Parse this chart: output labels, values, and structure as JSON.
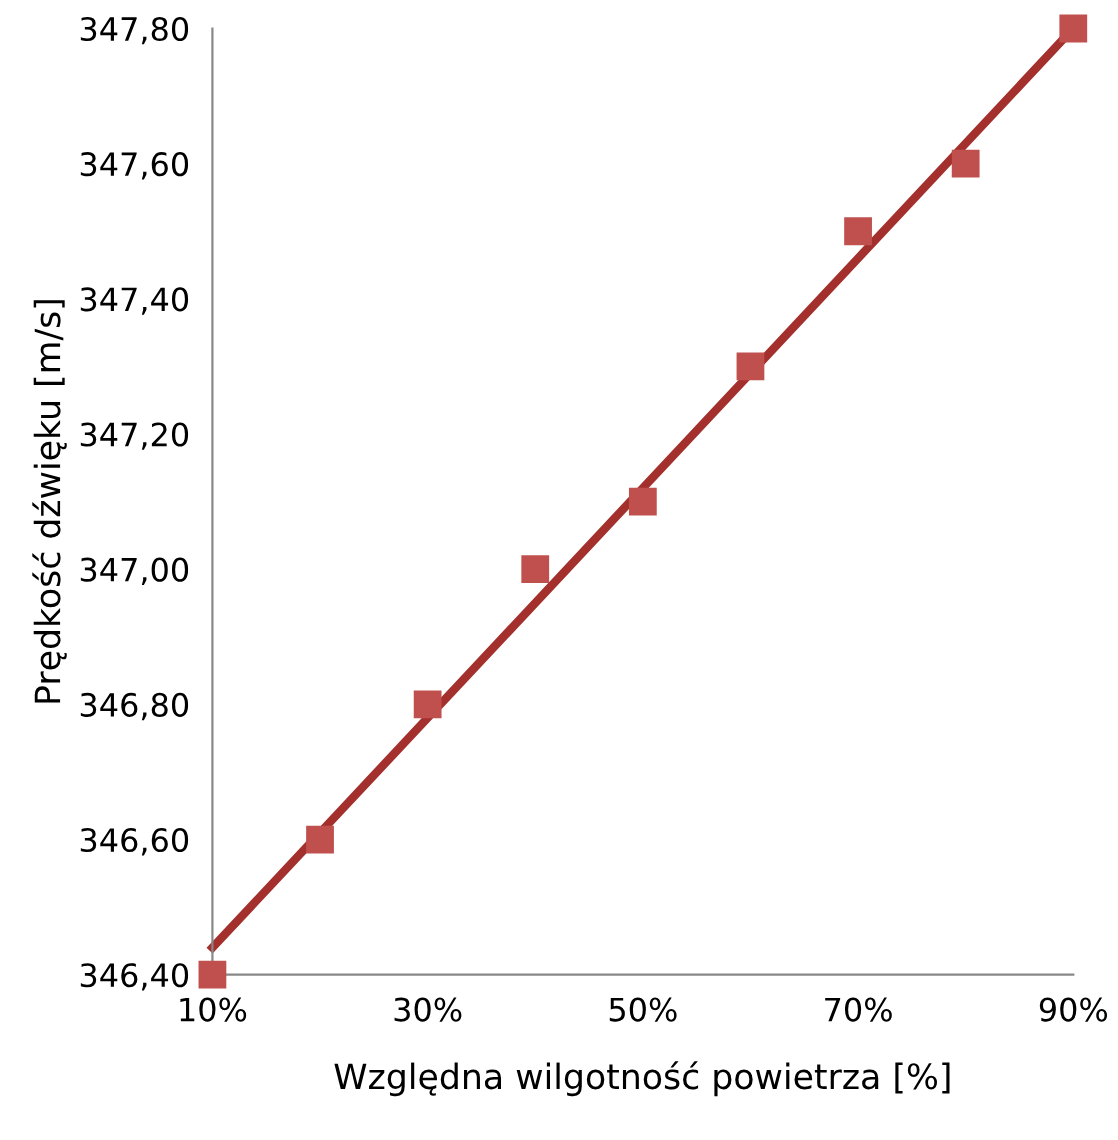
{
  "chart_data": {
    "type": "scatter",
    "xlabel": "Względna wilgotność powietrza [%]",
    "ylabel": "Prędkość dźwięku [m/s]",
    "x": [
      10,
      20,
      30,
      40,
      50,
      60,
      70,
      80,
      90
    ],
    "series": [
      {
        "color": "#c0504d",
        "marker": "square",
        "values": [
          346.4,
          346.6,
          346.8,
          347.0,
          347.1,
          347.3,
          347.5,
          347.6,
          347.8
        ]
      },
      {
        "type": "line",
        "color": "#a3302c",
        "x": [
          10,
          90
        ],
        "values": [
          346.44,
          347.8
        ],
        "marker": "none",
        "line_style": "solid"
      }
    ],
    "xlim": [
      10,
      90
    ],
    "xticks": [
      {
        "value": 10,
        "label": "10%"
      },
      {
        "value": 30,
        "label": "30%"
      },
      {
        "value": 50,
        "label": "50%"
      },
      {
        "value": 70,
        "label": "70%"
      },
      {
        "value": 90,
        "label": "90%"
      }
    ],
    "ylim": [
      346.4,
      347.8
    ],
    "yticks": [
      {
        "value": 346.4,
        "label": "346,40"
      },
      {
        "value": 346.6,
        "label": "346,60"
      },
      {
        "value": 346.8,
        "label": "346,80"
      },
      {
        "value": 347.0,
        "label": "347,00"
      },
      {
        "value": 347.2,
        "label": "347,20"
      },
      {
        "value": 347.4,
        "label": "347,40"
      },
      {
        "value": 347.6,
        "label": "347,60"
      },
      {
        "value": 347.8,
        "label": "347,80"
      }
    ],
    "grid": false,
    "legend": false
  }
}
